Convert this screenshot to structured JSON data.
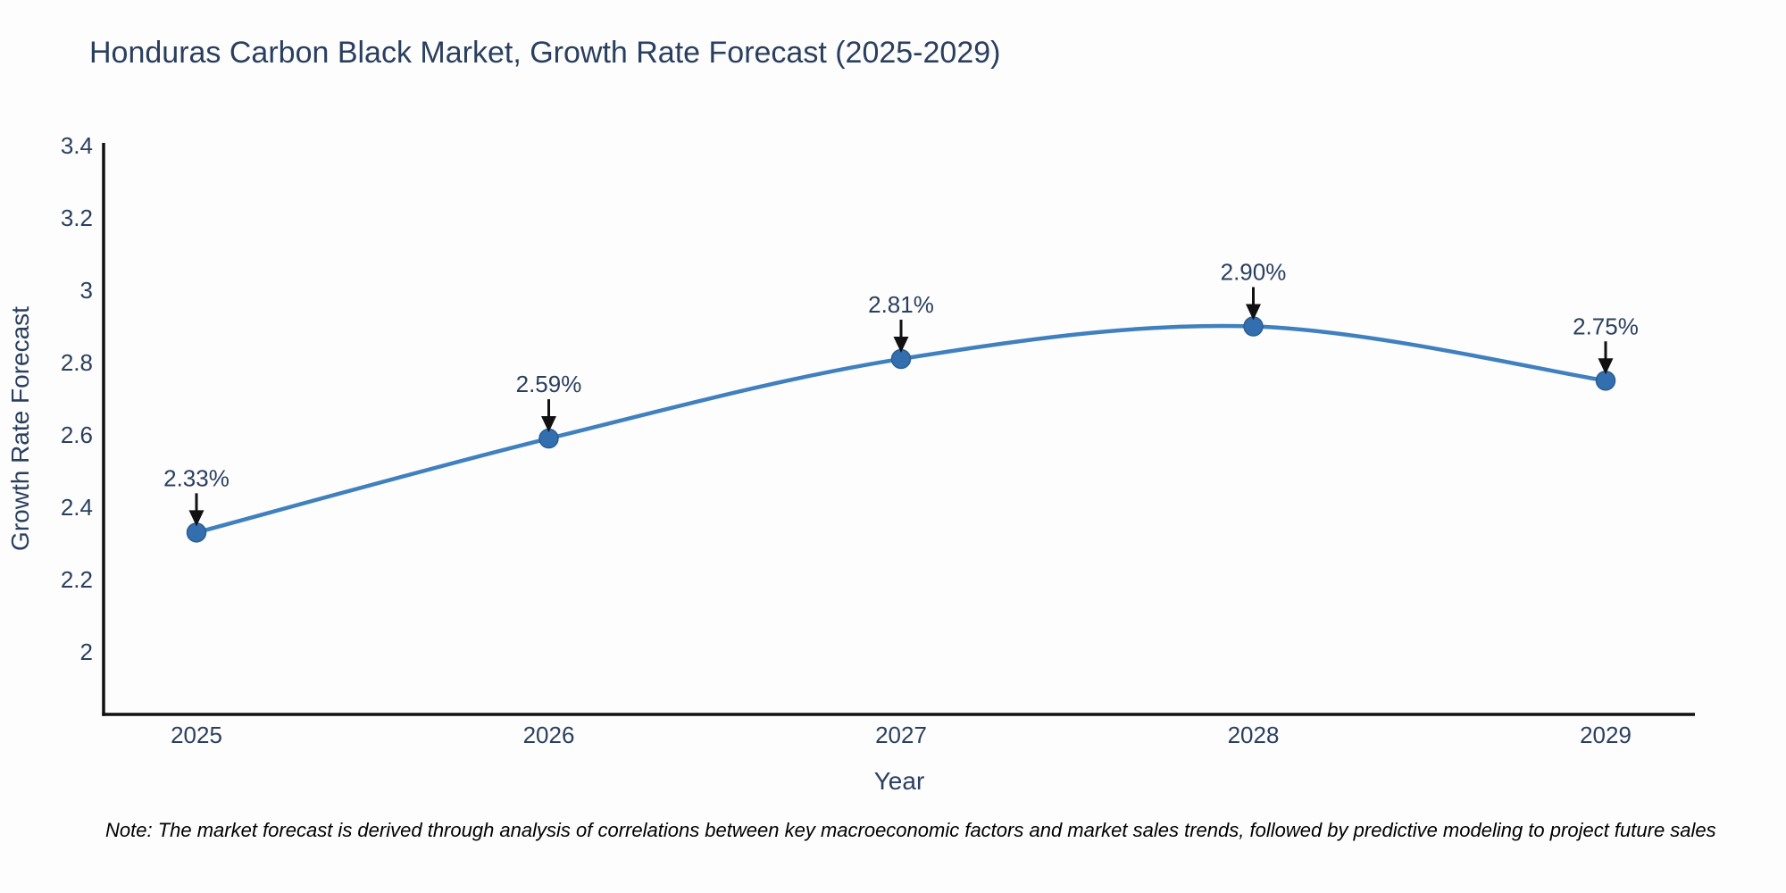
{
  "title": "Honduras Carbon Black Market, Growth Rate Forecast (2025-2029)",
  "note": {
    "text": "Note: The market forecast is derived through analysis of correlations between key macroeconomic factors and market sales trends, followed by predictive modeling to project future sales"
  },
  "chart_data": {
    "type": "line",
    "title": "Honduras Carbon Black Market, Growth Rate Forecast (2025-2029)",
    "xlabel": "Year",
    "ylabel": "Growth Rate Forecast",
    "x": [
      2025,
      2026,
      2027,
      2028,
      2029
    ],
    "values": [
      2.33,
      2.59,
      2.81,
      2.9,
      2.75
    ],
    "point_labels": [
      "2.33%",
      "2.59%",
      "2.81%",
      "2.90%",
      "2.75%"
    ],
    "xtick_labels": [
      "2025",
      "2026",
      "2027",
      "2028",
      "2029"
    ],
    "ytick_values": [
      2,
      2.2,
      2.4,
      2.6,
      2.8,
      3,
      3.2,
      3.4
    ],
    "ytick_labels": [
      "2",
      "2.2",
      "2.4",
      "2.6",
      "2.8",
      "3",
      "3.2",
      "3.4"
    ],
    "ylim": [
      1.83,
      3.4
    ],
    "grid": false,
    "legend_position": "none",
    "line_shape": "spline",
    "annotation_style": "down-arrow",
    "colors": {
      "line": "#4080bf",
      "marker": "#336fae",
      "marker_edge": "#2a5d94",
      "axis_line": "#111111",
      "tick_text": "#2a3f5f",
      "axis_title_text": "#2a3f5f",
      "annotation_text": "#2a3f5f",
      "annotation_arrow": "#111111",
      "title_text": "#2a3f5f",
      "note_text": "#000000",
      "background": "#fdfdfd"
    }
  }
}
